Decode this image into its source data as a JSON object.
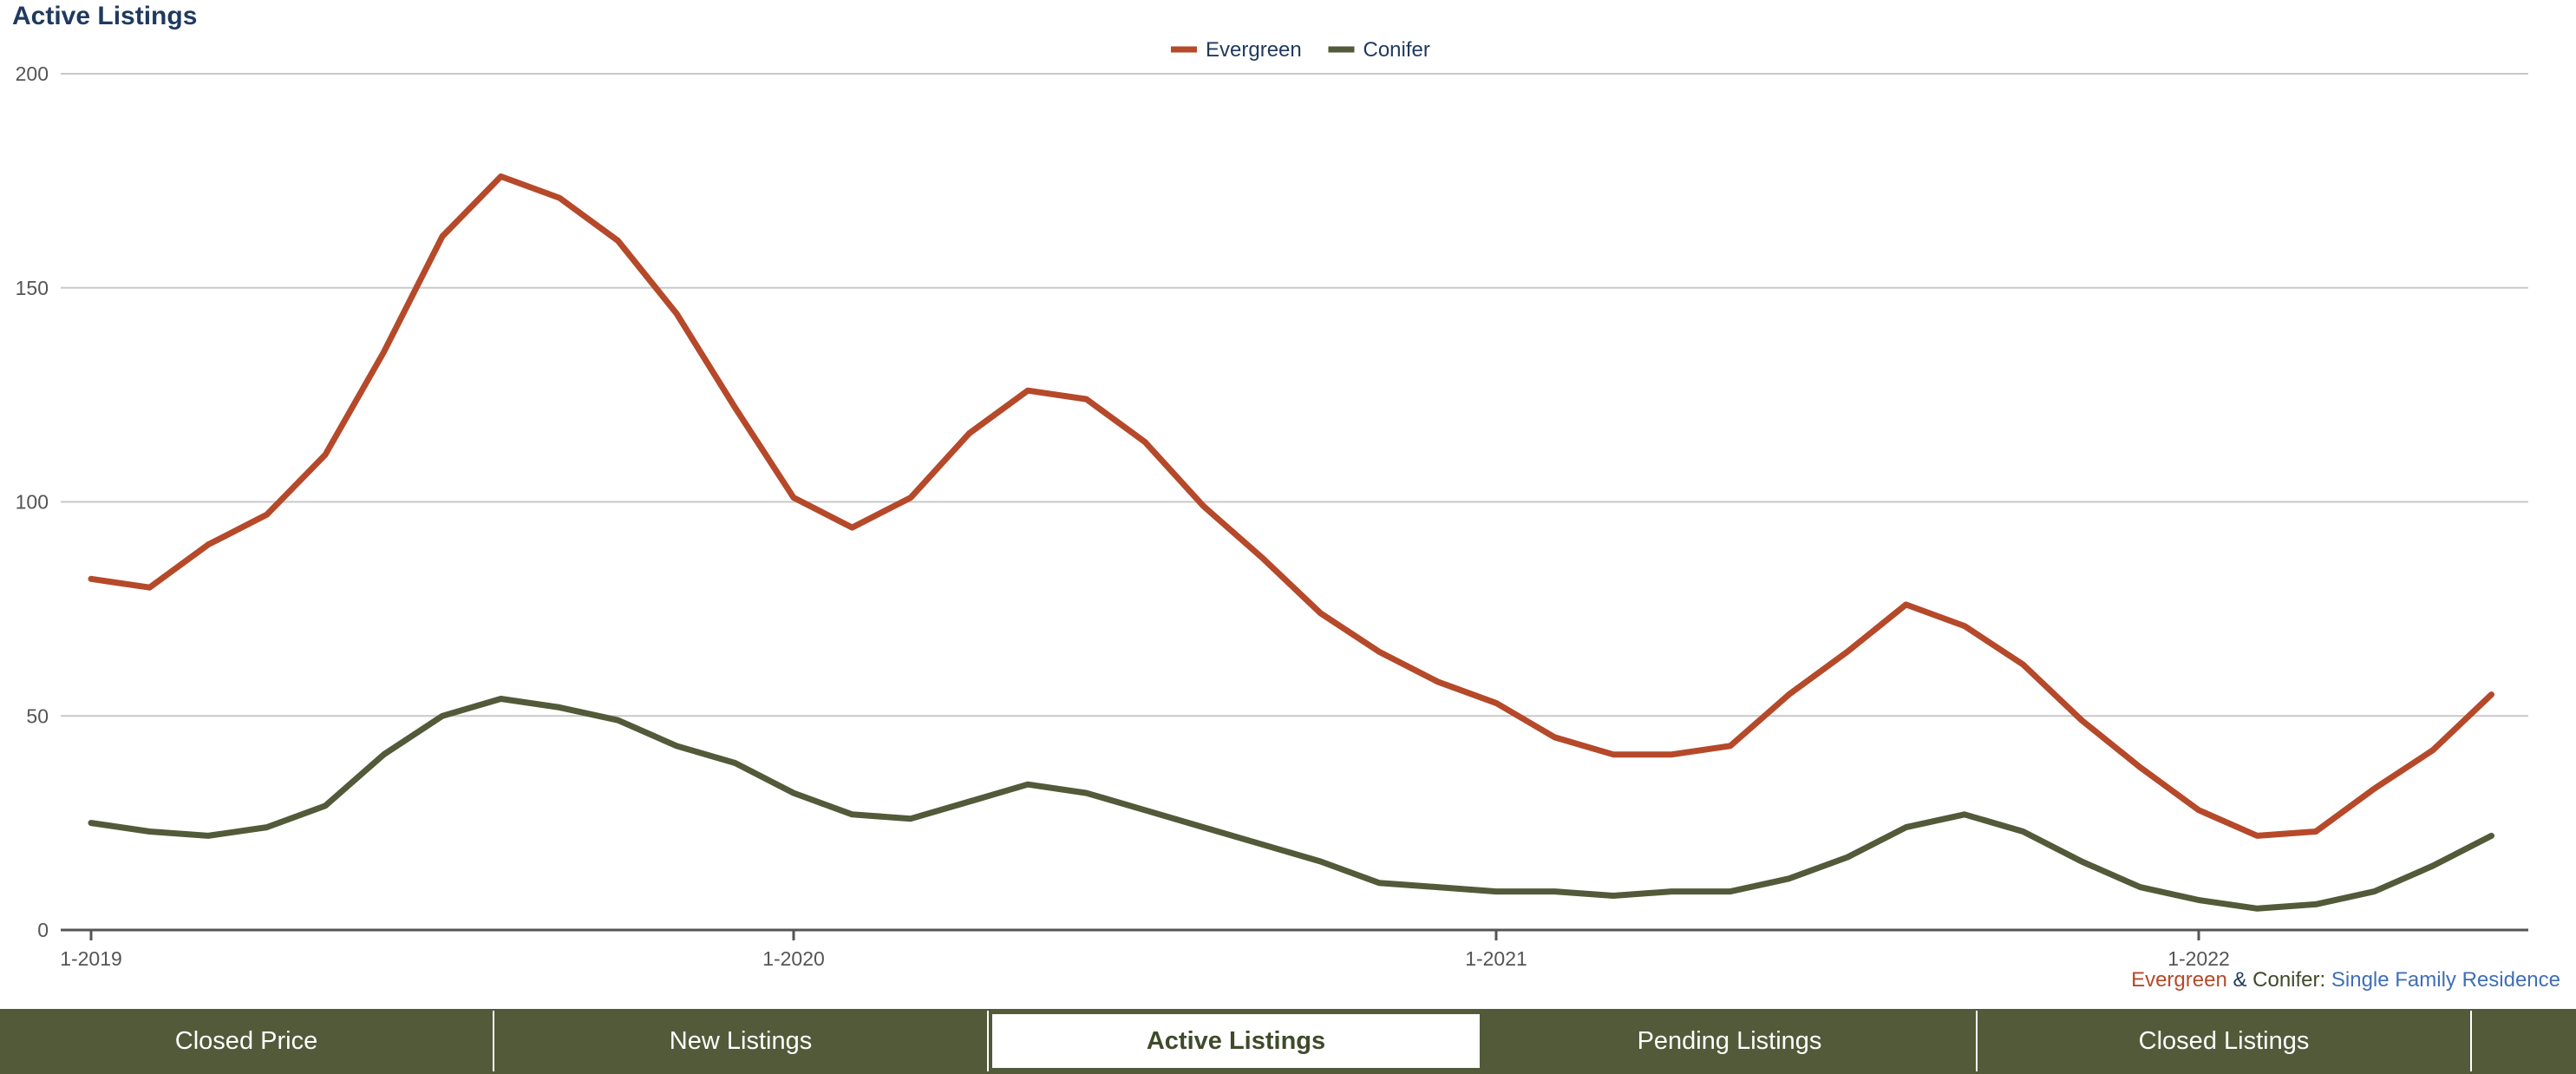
{
  "title": "Active Listings",
  "caption": {
    "area1": "Evergreen",
    "amp": "&",
    "area2": "Conifer:",
    "property_type": "Single Family Residence"
  },
  "tabs": [
    {
      "label": "Closed Price",
      "active": false
    },
    {
      "label": "New Listings",
      "active": false
    },
    {
      "label": "Active Listings",
      "active": true
    },
    {
      "label": "Pending Listings",
      "active": false
    },
    {
      "label": "Closed Listings",
      "active": false
    }
  ],
  "chart_data": {
    "type": "line",
    "title": "Active Listings",
    "x_tick_labels": [
      "1-2019",
      "1-2020",
      "1-2021",
      "1-2022"
    ],
    "x_start_month": "1-2019",
    "ylim": [
      0,
      200
    ],
    "y_ticks": [
      0,
      50,
      100,
      150,
      200
    ],
    "grid": true,
    "legend_position": "top-center",
    "series": [
      {
        "name": "Evergreen",
        "color": "#b5492a",
        "values": [
          82,
          80,
          90,
          97,
          111,
          135,
          162,
          176,
          171,
          161,
          144,
          122,
          101,
          94,
          101,
          116,
          126,
          124,
          114,
          99,
          87,
          74,
          65,
          58,
          53,
          45,
          41,
          41,
          43,
          55,
          65,
          76,
          71,
          62,
          49,
          38,
          28,
          22,
          23,
          33,
          42,
          55
        ]
      },
      {
        "name": "Conifer",
        "color": "#525a39",
        "values": [
          25,
          23,
          22,
          24,
          29,
          41,
          50,
          54,
          52,
          49,
          43,
          39,
          32,
          27,
          26,
          30,
          34,
          32,
          28,
          24,
          20,
          16,
          11,
          10,
          9,
          9,
          8,
          9,
          9,
          12,
          17,
          24,
          27,
          23,
          16,
          10,
          7,
          5,
          6,
          9,
          15,
          22
        ]
      }
    ]
  }
}
